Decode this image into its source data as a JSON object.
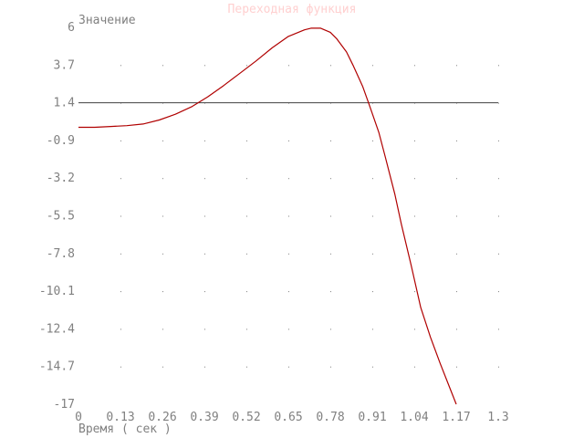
{
  "chart_data": {
    "type": "line",
    "title": "Переходная функция",
    "xlabel": "Время ( сек )",
    "ylabel": "Значение",
    "xlim": [
      0,
      1.3
    ],
    "ylim": [
      -17,
      6
    ],
    "x_ticks": [
      "0",
      "0.13",
      "0.26",
      "0.39",
      "0.52",
      "0.65",
      "0.78",
      "0.91",
      "1.04",
      "1.17",
      "1.3"
    ],
    "y_ticks": [
      "6",
      "3.7",
      "1.4",
      "-0.9",
      "-3.2",
      "-5.5",
      "-7.8",
      "-10.1",
      "-12.4",
      "-14.7",
      "-17"
    ],
    "grid": true,
    "reference_line": {
      "y": 1.4,
      "color": "#404040"
    },
    "series": [
      {
        "color": "#b00000",
        "x": [
          0,
          0.05,
          0.1,
          0.15,
          0.2,
          0.25,
          0.3,
          0.35,
          0.4,
          0.45,
          0.5,
          0.55,
          0.6,
          0.65,
          0.7,
          0.72,
          0.75,
          0.78,
          0.8,
          0.83,
          0.85,
          0.88,
          0.9,
          0.93,
          0.95,
          0.98,
          1.0,
          1.03,
          1.06,
          1.09,
          1.12,
          1.15,
          1.17
        ],
        "y": [
          -0.1,
          -0.1,
          -0.05,
          0.0,
          0.1,
          0.35,
          0.7,
          1.15,
          1.75,
          2.45,
          3.2,
          3.95,
          4.75,
          5.45,
          5.85,
          5.95,
          5.95,
          5.7,
          5.3,
          4.5,
          3.7,
          2.4,
          1.3,
          -0.4,
          -1.9,
          -4.2,
          -6.0,
          -8.5,
          -11.1,
          -12.9,
          -14.5,
          -16.0,
          -17.0
        ]
      }
    ]
  }
}
